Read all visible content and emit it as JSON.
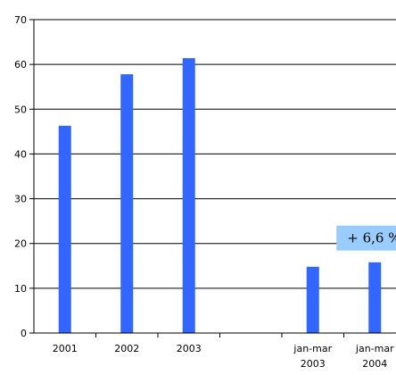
{
  "chart_data": {
    "type": "bar",
    "categories": [
      [
        "2001"
      ],
      [
        "2002"
      ],
      [
        "2003"
      ],
      [
        ""
      ],
      [
        "jan-mar",
        "2003"
      ],
      [
        "jan-mar",
        "2004"
      ]
    ],
    "values": [
      46.3,
      57.8,
      61.4,
      null,
      14.8,
      15.8
    ],
    "ylim": [
      0,
      70
    ],
    "y_ticks": [
      0,
      10,
      20,
      30,
      40,
      50,
      60,
      70
    ],
    "grid": "horizontal",
    "legend": "none",
    "annotation": {
      "text": "+ 6,6 %",
      "category_index": 5
    },
    "colors": {
      "bar": "#3366ff",
      "annotation_bg": "#99ccff",
      "axis": "#000000"
    }
  }
}
